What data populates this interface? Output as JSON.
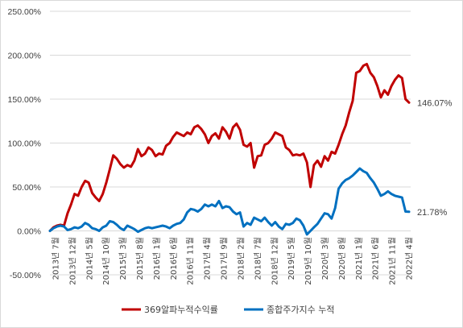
{
  "chart_data": {
    "type": "line",
    "title": "",
    "xlabel": "",
    "ylabel": "",
    "ylim": [
      -50,
      250
    ],
    "yticks": [
      "250.00%",
      "200.00%",
      "150.00%",
      "100.00%",
      "50.00%",
      "0.00%",
      "-50.00%"
    ],
    "grid": true,
    "legend": "bottom",
    "x_tick_labels": [
      "2013년 7월",
      "2013년 12월",
      "2014년 5월",
      "2014년 10월",
      "2015년 3월",
      "2015년 8월",
      "2016년 1월",
      "2016년 6월",
      "2016년 11월",
      "2017년 4월",
      "2017년 9월",
      "2018년 2월",
      "2018년 7월",
      "2018년 12월",
      "2019년 5월",
      "2019년 10월",
      "2020년 3월",
      "2020년 8월",
      "2021년 1월",
      "2021년 6월",
      "2021년 11월",
      "2022년 4월"
    ],
    "series": [
      {
        "name": "369알파누적수익률",
        "color": "#c00000",
        "end_label": "146.07%",
        "values": [
          0,
          4,
          6,
          7,
          6,
          20,
          30,
          42,
          40,
          50,
          57,
          55,
          43,
          38,
          34,
          42,
          55,
          70,
          86,
          82,
          76,
          72,
          75,
          73,
          80,
          93,
          85,
          88,
          95,
          92,
          85,
          88,
          87,
          97,
          100,
          107,
          112,
          110,
          108,
          112,
          110,
          118,
          120,
          116,
          110,
          100,
          108,
          111,
          105,
          118,
          113,
          105,
          118,
          122,
          115,
          98,
          96,
          100,
          72,
          85,
          86,
          98,
          100,
          105,
          112,
          110,
          108,
          95,
          92,
          86,
          87,
          86,
          88,
          78,
          50,
          75,
          80,
          73,
          85,
          80,
          90,
          88,
          98,
          110,
          120,
          135,
          148,
          180,
          182,
          188,
          190,
          180,
          175,
          165,
          152,
          160,
          155,
          165,
          172,
          177,
          174,
          150,
          146.07
        ]
      },
      {
        "name": "종합주가지수 누적",
        "color": "#0070c0",
        "end_label": "21.78%",
        "values": [
          0,
          3,
          5,
          6,
          5,
          1,
          2,
          4,
          3,
          5,
          9,
          7,
          3,
          2,
          0,
          4,
          6,
          11,
          10,
          7,
          3,
          1,
          6,
          4,
          2,
          -1,
          1,
          3,
          4,
          3,
          4,
          5,
          6,
          5,
          3,
          6,
          8,
          9,
          13,
          21,
          25,
          24,
          22,
          25,
          30,
          28,
          30,
          28,
          34,
          26,
          28,
          27,
          22,
          19,
          21,
          5,
          9,
          7,
          15,
          13,
          11,
          15,
          10,
          6,
          10,
          5,
          2,
          8,
          7,
          9,
          14,
          12,
          6,
          -4,
          0,
          4,
          8,
          14,
          20,
          19,
          14,
          26,
          48,
          54,
          58,
          60,
          63,
          67,
          71,
          68,
          66,
          60,
          55,
          48,
          40,
          42,
          45,
          42,
          40,
          39,
          38,
          22,
          21.78
        ]
      }
    ]
  }
}
